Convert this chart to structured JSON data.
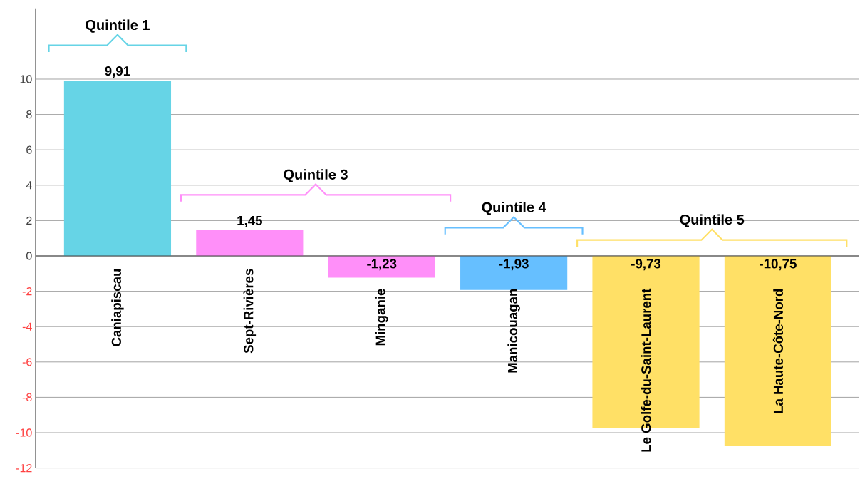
{
  "chart_data": {
    "type": "bar",
    "categories": [
      "Caniapiscau",
      "Sept-Rivières",
      "Minganie",
      "Manicouagan",
      "Le Golfe-du-Saint-Laurent",
      "La Haute-Côte-Nord"
    ],
    "values": [
      9.91,
      1.45,
      -1.23,
      -1.93,
      -9.73,
      -10.75
    ],
    "value_labels": [
      "9,91",
      "1,45",
      "-1,23",
      "-1,93",
      "-9,73",
      "-10,75"
    ],
    "colors": [
      "#66d4e6",
      "#ff8ff9",
      "#ff8ff9",
      "#66bfff",
      "#ffe066",
      "#ffe066"
    ],
    "ylim": [
      -12,
      14
    ],
    "yticks": [
      -12,
      -10,
      -8,
      -6,
      -4,
      -2,
      0,
      2,
      4,
      6,
      8,
      10
    ],
    "grid": "y",
    "annotations": [
      "Quintile 1",
      "Quintile 3",
      "Quintile 4",
      "Quintile 5"
    ]
  }
}
